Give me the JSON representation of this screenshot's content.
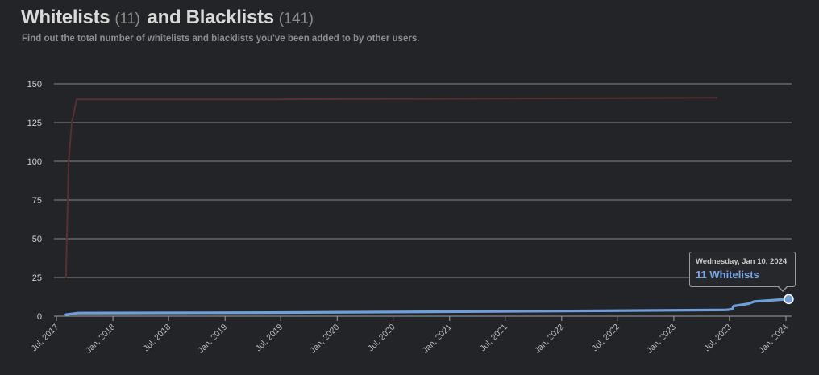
{
  "header": {
    "title_whitelists": "Whitelists",
    "whitelist_count": "(11)",
    "title_and_blacklists": "and Blacklists",
    "blacklist_count": "(141)",
    "subtitle": "Find out the total number of whitelists and blacklists you've been added to by other users."
  },
  "tooltip": {
    "date": "Wednesday, Jan 10, 2024",
    "value": "11 Whitelists"
  },
  "colors": {
    "background": "#232427",
    "whitelists": "#6f9fdb",
    "blacklists": "#5a2f33",
    "grid": "#8a8a8a"
  },
  "chart_data": {
    "type": "line",
    "title": "",
    "xlabel": "",
    "ylabel": "",
    "ylim": [
      0,
      150
    ],
    "yticks": [
      0,
      25,
      50,
      75,
      100,
      125,
      150
    ],
    "xlim": [
      "2017-07-01",
      "2024-03-01"
    ],
    "xticks": [
      {
        "date": "2017-07-01",
        "label": "Jul, 2017"
      },
      {
        "date": "2018-01-01",
        "label": "Jan, 2018"
      },
      {
        "date": "2018-07-01",
        "label": "Jul, 2018"
      },
      {
        "date": "2019-01-01",
        "label": "Jan, 2019"
      },
      {
        "date": "2019-07-01",
        "label": "Jul, 2019"
      },
      {
        "date": "2020-01-01",
        "label": "Jan, 2020"
      },
      {
        "date": "2020-07-01",
        "label": "Jul, 2020"
      },
      {
        "date": "2021-01-01",
        "label": "Jan, 2021"
      },
      {
        "date": "2021-07-01",
        "label": "Jul, 2021"
      },
      {
        "date": "2022-01-01",
        "label": "Jan, 2022"
      },
      {
        "date": "2022-07-01",
        "label": "Jul, 2022"
      },
      {
        "date": "2023-01-01",
        "label": "Jan, 2023"
      },
      {
        "date": "2023-07-01",
        "label": "Jul, 2023"
      },
      {
        "date": "2024-01-01",
        "label": "Jan, 2024"
      }
    ],
    "grid": true,
    "legend": "none",
    "series": [
      {
        "key": "blacklists",
        "points": [
          [
            "2017-08-01",
            25
          ],
          [
            "2017-08-10",
            100
          ],
          [
            "2017-08-20",
            125
          ],
          [
            "2017-09-05",
            140
          ],
          [
            "2019-06-01",
            140
          ],
          [
            "2021-06-01",
            140.5
          ],
          [
            "2023-05-20",
            141
          ]
        ]
      },
      {
        "key": "whitelists",
        "points": [
          [
            "2017-08-01",
            1
          ],
          [
            "2017-09-10",
            2
          ],
          [
            "2019-06-01",
            2.3
          ],
          [
            "2021-06-01",
            3
          ],
          [
            "2023-06-20",
            4
          ],
          [
            "2023-07-10",
            4.5
          ],
          [
            "2023-07-15",
            6.5
          ],
          [
            "2023-09-01",
            8
          ],
          [
            "2023-09-20",
            9.5
          ],
          [
            "2024-01-10",
            11
          ]
        ]
      }
    ],
    "highlight": {
      "series": "whitelists",
      "x": "2024-01-10",
      "y": 11
    }
  }
}
